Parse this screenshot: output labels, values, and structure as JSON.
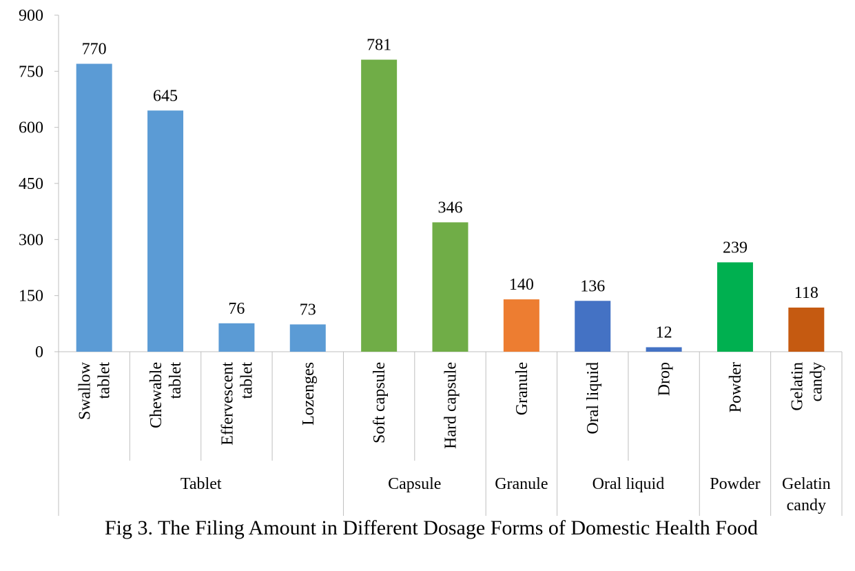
{
  "chart_data": {
    "type": "bar",
    "title": "",
    "xlabel": "",
    "ylabel": "",
    "ylim": [
      0,
      900
    ],
    "yticks": [
      0,
      150,
      300,
      450,
      600,
      750,
      900
    ],
    "grid": false,
    "legend": "none",
    "categories": [
      {
        "label": "Swallow tablet",
        "lines": [
          "Swallow",
          "tablet"
        ],
        "value": 770,
        "group": "Tablet",
        "color": "#5B9BD5"
      },
      {
        "label": "Chewable tablet",
        "lines": [
          "Chewable",
          "tablet"
        ],
        "value": 645,
        "group": "Tablet",
        "color": "#5B9BD5"
      },
      {
        "label": "Effervescent tablet",
        "lines": [
          "Effervescent",
          "tablet"
        ],
        "value": 76,
        "group": "Tablet",
        "color": "#5B9BD5"
      },
      {
        "label": "Lozenges",
        "lines": [
          "Lozenges"
        ],
        "value": 73,
        "group": "Tablet",
        "color": "#5B9BD5"
      },
      {
        "label": "Soft capsule",
        "lines": [
          "Soft capsule"
        ],
        "value": 781,
        "group": "Capsule",
        "color": "#70AD47"
      },
      {
        "label": "Hard capsule",
        "lines": [
          "Hard capsule"
        ],
        "value": 346,
        "group": "Capsule",
        "color": "#70AD47"
      },
      {
        "label": "Granule",
        "lines": [
          "Granule"
        ],
        "value": 140,
        "group": "Granule",
        "color": "#ED7D31"
      },
      {
        "label": "Oral liquid",
        "lines": [
          "Oral liquid"
        ],
        "value": 136,
        "group": "Oral liquid",
        "color": "#4472C4"
      },
      {
        "label": "Drop",
        "lines": [
          "Drop"
        ],
        "value": 12,
        "group": "Oral liquid",
        "color": "#4472C4"
      },
      {
        "label": "Powder",
        "lines": [
          "Powder"
        ],
        "value": 239,
        "group": "Powder",
        "color": "#00B050"
      },
      {
        "label": "Gelatin candy",
        "lines": [
          "Gelatin",
          "candy"
        ],
        "value": 118,
        "group": "Gelatin candy",
        "color": "#C55A11"
      }
    ],
    "groups": [
      {
        "name": "Tablet",
        "lines": [
          "Tablet"
        ]
      },
      {
        "name": "Capsule",
        "lines": [
          "Capsule"
        ]
      },
      {
        "name": "Granule",
        "lines": [
          "Granule"
        ]
      },
      {
        "name": "Oral liquid",
        "lines": [
          "Oral liquid"
        ]
      },
      {
        "name": "Powder",
        "lines": [
          "Powder"
        ]
      },
      {
        "name": "Gelatin candy",
        "lines": [
          "Gelatin",
          "candy"
        ]
      }
    ]
  },
  "caption": "Fig 3. The Filing Amount in Different Dosage Forms of Domestic Health Food"
}
